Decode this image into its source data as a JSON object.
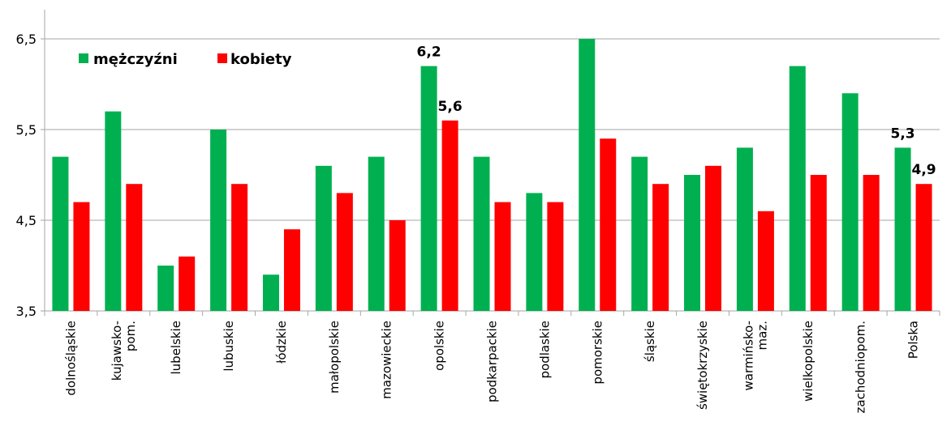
{
  "chart_data": {
    "type": "bar",
    "categories": [
      "dolnośląskie",
      "kujawsko-\npom.",
      "lubelskie",
      "lubuskie",
      "łódzkie",
      "małopolskie",
      "mazowieckie",
      "opolskie",
      "podkarpackie",
      "podlaskie",
      "pomorskie",
      "śląskie",
      "świętokrzyskie",
      "warmińsko-\nmaz.",
      "wielkopolskie",
      "zachodniopom.",
      "Polska"
    ],
    "series": [
      {
        "name": "mężczyźni",
        "color": "#00b050",
        "values": [
          5.2,
          5.7,
          4.0,
          5.5,
          3.9,
          5.1,
          5.2,
          6.2,
          5.2,
          4.8,
          6.5,
          5.2,
          5.0,
          5.3,
          6.2,
          5.9,
          5.3
        ]
      },
      {
        "name": "kobiety",
        "color": "#ff0000",
        "values": [
          4.7,
          4.9,
          4.1,
          4.9,
          4.4,
          4.8,
          4.5,
          5.6,
          4.7,
          4.7,
          5.4,
          4.9,
          5.1,
          4.6,
          5.0,
          5.0,
          4.9
        ]
      }
    ],
    "ylim": [
      3.5,
      6.5
    ],
    "yticks": [
      "3,5",
      "4,5",
      "5,5",
      "6,5"
    ],
    "ytick_values": [
      3.5,
      4.5,
      5.5,
      6.5
    ],
    "data_labels": [
      {
        "series": 0,
        "category": 7,
        "text": "6,2"
      },
      {
        "series": 1,
        "category": 7,
        "text": "5,6"
      },
      {
        "series": 0,
        "category": 16,
        "text": "5,3"
      },
      {
        "series": 1,
        "category": 16,
        "text": "4,9"
      }
    ],
    "legend_position": "top-left",
    "grid": true
  }
}
